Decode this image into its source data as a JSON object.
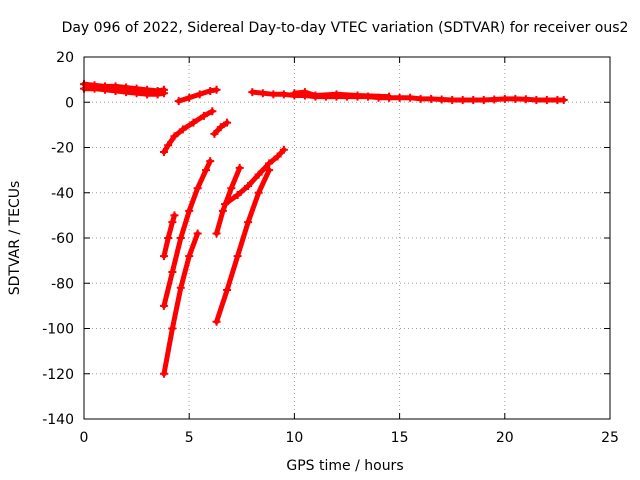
{
  "chart_data": {
    "type": "scatter",
    "title": "Day 096 of 2022, Sidereal Day-to-day VTEC variation (SDTVAR) for receiver ous2",
    "xlabel": "GPS time / hours",
    "ylabel": "SDTVAR / TECUs",
    "xlim": [
      0,
      25
    ],
    "ylim": [
      -140,
      20
    ],
    "xticks": [
      0,
      5,
      10,
      15,
      20,
      25
    ],
    "yticks": [
      20,
      0,
      -20,
      -40,
      -60,
      -80,
      -100,
      -120,
      -140
    ],
    "grid": true,
    "marker": "plus",
    "color": "#ff0000",
    "series": [
      {
        "points": [
          [
            0.0,
            8
          ],
          [
            0.5,
            7.5
          ],
          [
            1.0,
            7
          ],
          [
            1.5,
            7
          ],
          [
            2.0,
            6.5
          ],
          [
            2.5,
            6
          ],
          [
            3.0,
            5.5
          ],
          [
            3.5,
            5
          ],
          [
            3.8,
            5.5
          ]
        ]
      },
      {
        "points": [
          [
            0.0,
            6
          ],
          [
            0.5,
            6
          ],
          [
            1.0,
            5.5
          ],
          [
            1.5,
            5
          ],
          [
            2.0,
            4.5
          ],
          [
            2.5,
            4
          ],
          [
            3.0,
            3.5
          ],
          [
            3.5,
            3.5
          ],
          [
            3.8,
            4
          ]
        ]
      },
      {
        "points": [
          [
            4.5,
            0.5
          ],
          [
            5.0,
            2
          ],
          [
            5.5,
            3.5
          ],
          [
            6.0,
            5
          ],
          [
            6.3,
            5.5
          ]
        ]
      },
      {
        "points": [
          [
            8.0,
            4.5
          ],
          [
            8.5,
            4
          ],
          [
            9.0,
            3.5
          ],
          [
            9.5,
            3.5
          ],
          [
            10.0,
            3
          ],
          [
            10.5,
            3
          ],
          [
            11.0,
            2.5
          ],
          [
            11.5,
            2.5
          ],
          [
            12.0,
            2.5
          ],
          [
            12.5,
            2.5
          ],
          [
            13.0,
            2.5
          ],
          [
            13.5,
            2.5
          ],
          [
            14.0,
            2
          ],
          [
            14.5,
            2
          ],
          [
            15.0,
            2
          ],
          [
            15.5,
            2
          ],
          [
            16.0,
            1.5
          ],
          [
            16.5,
            1.5
          ],
          [
            17.0,
            1.2
          ],
          [
            17.5,
            1
          ],
          [
            18.0,
            1
          ],
          [
            18.5,
            1
          ],
          [
            19.0,
            1
          ],
          [
            19.5,
            1.2
          ],
          [
            20.0,
            1.5
          ],
          [
            20.5,
            1.5
          ],
          [
            21.0,
            1.3
          ],
          [
            21.5,
            1
          ],
          [
            22.0,
            1
          ],
          [
            22.5,
            1
          ],
          [
            22.8,
            1
          ]
        ]
      },
      {
        "points": [
          [
            10.0,
            4
          ],
          [
            10.5,
            4.5
          ],
          [
            11.0,
            3
          ],
          [
            12.0,
            3.5
          ],
          [
            13.0,
            3
          ],
          [
            14.5,
            2.5
          ]
        ]
      },
      {
        "points": [
          [
            3.8,
            -22
          ],
          [
            4.0,
            -19
          ],
          [
            4.3,
            -15
          ],
          [
            4.7,
            -12
          ],
          [
            5.2,
            -9
          ],
          [
            5.7,
            -6
          ],
          [
            6.1,
            -4
          ]
        ]
      },
      {
        "points": [
          [
            6.2,
            -14
          ],
          [
            6.5,
            -11
          ],
          [
            6.8,
            -9
          ]
        ]
      },
      {
        "points": [
          [
            3.8,
            -68
          ],
          [
            4.0,
            -60
          ],
          [
            4.2,
            -53
          ],
          [
            4.3,
            -50
          ]
        ]
      },
      {
        "points": [
          [
            3.8,
            -90
          ],
          [
            4.2,
            -75
          ],
          [
            4.6,
            -60
          ],
          [
            5.0,
            -48
          ],
          [
            5.4,
            -38
          ],
          [
            5.8,
            -30
          ],
          [
            6.0,
            -26
          ]
        ]
      },
      {
        "points": [
          [
            3.8,
            -120
          ],
          [
            4.2,
            -100
          ],
          [
            4.6,
            -82
          ],
          [
            5.0,
            -68
          ],
          [
            5.4,
            -58
          ]
        ]
      },
      {
        "points": [
          [
            6.3,
            -58
          ],
          [
            6.6,
            -48
          ],
          [
            7.0,
            -38
          ],
          [
            7.4,
            -29
          ]
        ]
      },
      {
        "points": [
          [
            6.7,
            -45
          ],
          [
            7.3,
            -41
          ],
          [
            7.8,
            -37
          ],
          [
            8.3,
            -32
          ],
          [
            8.8,
            -27
          ],
          [
            9.2,
            -24
          ],
          [
            9.5,
            -21
          ]
        ]
      },
      {
        "points": [
          [
            6.3,
            -97
          ],
          [
            6.8,
            -83
          ],
          [
            7.3,
            -68
          ],
          [
            7.8,
            -53
          ],
          [
            8.3,
            -40
          ],
          [
            8.8,
            -30
          ]
        ]
      }
    ]
  }
}
